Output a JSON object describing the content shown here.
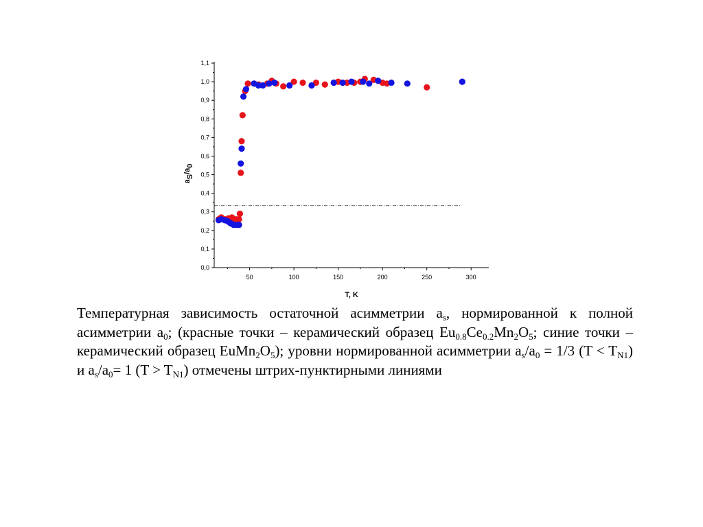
{
  "chart_data": {
    "type": "scatter",
    "xlabel": "T, K",
    "ylabel": {
      "main": "a",
      "sub1": "S",
      "slash": "/a",
      "sub2": "0"
    },
    "xlim": [
      10,
      320
    ],
    "ylim": [
      0.0,
      1.1
    ],
    "x_ticks": [
      50,
      100,
      150,
      200,
      250,
      300
    ],
    "y_ticks": [
      0.0,
      0.1,
      0.2,
      0.3,
      0.4,
      0.5,
      0.6,
      0.7,
      0.8,
      0.9,
      1.0,
      1.1
    ],
    "x_tick_labels": [
      "50",
      "100",
      "150",
      "200",
      "250",
      "300"
    ],
    "y_tick_labels": [
      "0,0",
      "0,1",
      "0,2",
      "0,3",
      "0,4",
      "0,5",
      "0,6",
      "0,7",
      "0,8",
      "0,9",
      "1,0",
      "1,1"
    ],
    "grid": false,
    "reference_lines": [
      {
        "axis": "y",
        "value": 0.333,
        "style": "dash-dot"
      }
    ],
    "series": [
      {
        "color": "#e8141c",
        "points": [
          [
            15,
            0.26
          ],
          [
            18,
            0.27
          ],
          [
            22,
            0.26
          ],
          [
            26,
            0.265
          ],
          [
            30,
            0.27
          ],
          [
            32,
            0.255
          ],
          [
            35,
            0.26
          ],
          [
            38,
            0.26
          ],
          [
            39,
            0.29
          ],
          [
            40,
            0.51
          ],
          [
            41,
            0.68
          ],
          [
            42,
            0.82
          ],
          [
            45,
            0.95
          ],
          [
            48,
            0.99
          ],
          [
            55,
            0.99
          ],
          [
            60,
            0.985
          ],
          [
            70,
            0.99
          ],
          [
            75,
            1.005
          ],
          [
            80,
            0.99
          ],
          [
            88,
            0.975
          ],
          [
            100,
            1.0
          ],
          [
            110,
            0.995
          ],
          [
            125,
            0.995
          ],
          [
            135,
            0.985
          ],
          [
            145,
            0.995
          ],
          [
            150,
            1.0
          ],
          [
            160,
            0.995
          ],
          [
            168,
            0.995
          ],
          [
            175,
            1.0
          ],
          [
            180,
            1.015
          ],
          [
            190,
            1.01
          ],
          [
            200,
            0.995
          ],
          [
            205,
            0.99
          ],
          [
            250,
            0.97
          ],
          [
            290,
            1.0
          ]
        ]
      },
      {
        "color": "#1414e0",
        "points": [
          [
            15,
            0.255
          ],
          [
            18,
            0.26
          ],
          [
            22,
            0.255
          ],
          [
            25,
            0.25
          ],
          [
            28,
            0.24
          ],
          [
            30,
            0.235
          ],
          [
            32,
            0.23
          ],
          [
            35,
            0.23
          ],
          [
            38,
            0.23
          ],
          [
            40,
            0.56
          ],
          [
            41,
            0.64
          ],
          [
            43,
            0.92
          ],
          [
            46,
            0.96
          ],
          [
            55,
            0.99
          ],
          [
            60,
            0.98
          ],
          [
            65,
            0.98
          ],
          [
            72,
            0.99
          ],
          [
            78,
            0.995
          ],
          [
            95,
            0.98
          ],
          [
            120,
            0.98
          ],
          [
            145,
            0.995
          ],
          [
            155,
            0.995
          ],
          [
            165,
            1.0
          ],
          [
            178,
            1.0
          ],
          [
            185,
            0.99
          ],
          [
            195,
            1.005
          ],
          [
            210,
            0.995
          ],
          [
            228,
            0.99
          ],
          [
            290,
            1.0
          ]
        ]
      }
    ]
  },
  "caption": {
    "p1": "Температурная зависимость остаточной асимметрии a",
    "as_sub": "s",
    "p2": ", нормированной к полной асимметрии a",
    "a0_sub": "0",
    "p3": "; (красные точки – керамический образец Eu",
    "eu_sub": "0.8",
    "ce": "Ce",
    "ce_sub": "0.2",
    "mn": "Mn",
    "mn_sub": "2",
    "o": "O",
    "o_sub": "5",
    "p4": "; синие точки – керамический образец EuMn",
    "mn2_sub": "2",
    "o2": "O",
    "o2_sub": "5",
    "p5": "); уровни нормированной асимметрии a",
    "as2_sub": "s",
    "p6": "/a",
    "a02_sub": "0",
    "p7": " = 1/3 (T < T",
    "tn1_sub": "N1",
    "p8": ") и a",
    "as3_sub": "s",
    "p9": "/a",
    "a03_sub": "0",
    "p10": "= 1 (T > T",
    "tn2_sub": "N1",
    "p11": ") отмечены штрих-пунктирными линиями"
  }
}
